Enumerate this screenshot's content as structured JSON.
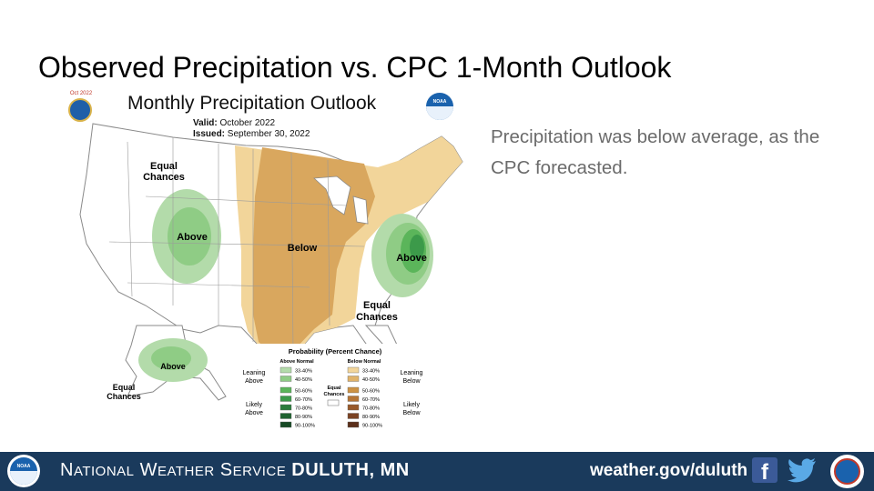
{
  "slide": {
    "title": "Observed Precipitation vs. CPC 1-Month Outlook",
    "side_note": "Precipitation was below average, as the CPC forecasted."
  },
  "map": {
    "title": "Monthly Precipitation Outlook",
    "valid_label": "Valid:",
    "valid_value": "October 2022",
    "issued_label": "Issued:",
    "issued_value": "September 30, 2022",
    "doc_logo_year": "Oct 2022",
    "noaa_logo_text": "NOAA",
    "regions": {
      "west_equal": [
        "Equal",
        "Chances"
      ],
      "west_above": "Above",
      "central_below": "Below",
      "east_above": "Above",
      "southeast_equal": [
        "Equal",
        "Chances"
      ],
      "alaska_above": "Above",
      "alaska_equal": [
        "Equal",
        "Chances"
      ]
    },
    "legend": {
      "title": "Probability (Percent Chance)",
      "above_header": "Above Normal",
      "below_header": "Below Normal",
      "equal_label": [
        "Equal",
        "Chances"
      ],
      "leaning_above": [
        "Leaning",
        "Above"
      ],
      "likely_above": [
        "Likely",
        "Above"
      ],
      "leaning_below": [
        "Leaning",
        "Below"
      ],
      "likely_below": [
        "Likely",
        "Below"
      ],
      "bins": [
        "33-40%",
        "40-50%",
        "50-60%",
        "60-70%",
        "70-80%",
        "80-90%",
        "90-100%"
      ],
      "above_colors": [
        "#b3dbaa",
        "#8fcc85",
        "#5bb55a",
        "#3c9a4a",
        "#2a7d3c",
        "#1f6330",
        "#174a25"
      ],
      "below_colors": [
        "#f2d59a",
        "#e0b36a",
        "#cc9244",
        "#b57536",
        "#98592b",
        "#7a4223",
        "#5b2f1a"
      ]
    }
  },
  "footer": {
    "org_initial_1": "N",
    "org_rest_1": "ATIONAL",
    "org_initial_2": "W",
    "org_rest_2": "EATHER",
    "org_initial_3": "S",
    "org_rest_3": "ERVICE",
    "office": "DULUTH, MN",
    "url": "weather.gov/duluth",
    "noaa_logo_text": "NOAA"
  },
  "colors": {
    "footer_bg": "#1a3a5c",
    "below": "#d9a75e",
    "below_light": "#f2d59a",
    "above_light": "#b3dbaa",
    "above_mid": "#8fcc85",
    "above_dark": "#3c9a4a"
  }
}
